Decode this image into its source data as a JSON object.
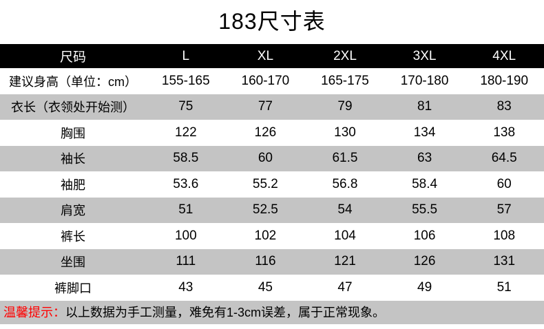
{
  "page": {
    "title": "183尺寸表"
  },
  "chart_data": {
    "type": "table",
    "title": "183尺寸表",
    "columns": [
      "尺码",
      "L",
      "XL",
      "2XL",
      "3XL",
      "4XL"
    ],
    "rows": [
      {
        "label": "建议身高（单位：cm）",
        "values": [
          "155-165",
          "160-170",
          "165-175",
          "170-180",
          "180-190"
        ]
      },
      {
        "label": "衣长（衣领处开始测）",
        "values": [
          "75",
          "77",
          "79",
          "81",
          "83"
        ]
      },
      {
        "label": "胸围",
        "values": [
          "122",
          "126",
          "130",
          "134",
          "138"
        ]
      },
      {
        "label": "袖长",
        "values": [
          "58.5",
          "60",
          "61.5",
          "63",
          "64.5"
        ]
      },
      {
        "label": "袖肥",
        "values": [
          "53.6",
          "55.2",
          "56.8",
          "58.4",
          "60"
        ]
      },
      {
        "label": "肩宽",
        "values": [
          "51",
          "52.5",
          "54",
          "55.5",
          "57"
        ]
      },
      {
        "label": "裤长",
        "values": [
          "100",
          "102",
          "104",
          "106",
          "108"
        ]
      },
      {
        "label": "坐围",
        "values": [
          "111",
          "116",
          "121",
          "126",
          "131"
        ]
      },
      {
        "label": "裤脚口",
        "values": [
          "43",
          "45",
          "47",
          "49",
          "51"
        ]
      }
    ]
  },
  "footer": {
    "prefix": "温馨提示：",
    "text": "以上数据为手工测量，难免有1-3cm误差，属于正常现象。"
  },
  "colors": {
    "header_bg": "#000000",
    "header_text": "#ffffff",
    "row_alt_bg": "#c4c4c4",
    "notice_bg": "#c4c4c4",
    "notice_prefix_text": "#ff0000",
    "body_text": "#000000",
    "page_bg": "#ffffff"
  }
}
